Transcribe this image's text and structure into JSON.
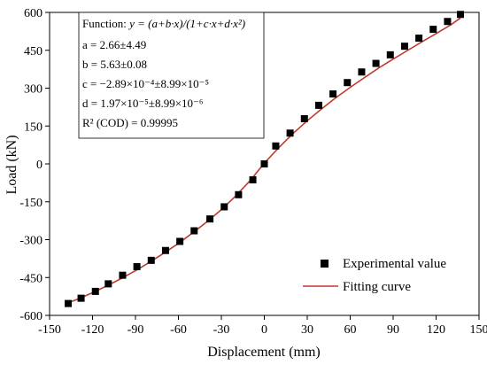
{
  "chart_data": {
    "type": "scatter",
    "xlabel": "Displacement (mm)",
    "ylabel": "Load (kN)",
    "xlim": [
      -150,
      150
    ],
    "ylim": [
      -600,
      600
    ],
    "xticks": [
      -150,
      -120,
      -90,
      -60,
      -30,
      0,
      30,
      60,
      90,
      120,
      150
    ],
    "yticks": [
      -600,
      -450,
      -300,
      -150,
      0,
      150,
      300,
      450,
      600
    ],
    "grid": false,
    "legend_placement": "bottom-right",
    "series": [
      {
        "name": "Experimental value",
        "marker": "square",
        "color": "#000000",
        "x": [
          -137,
          -128,
          -118,
          -109,
          -99,
          -89,
          -79,
          -69,
          -59,
          -49,
          -38,
          -28,
          -18,
          -8,
          0,
          8,
          18,
          28,
          38,
          48,
          58,
          68,
          78,
          88,
          98,
          108,
          118,
          128,
          137
        ],
        "y": [
          -553,
          -532,
          -505,
          -475,
          -441,
          -407,
          -382,
          -343,
          -307,
          -265,
          -218,
          -170,
          -122,
          -63,
          0,
          71,
          122,
          179,
          232,
          277,
          322,
          364,
          398,
          432,
          466,
          498,
          533,
          564,
          592
        ]
      },
      {
        "name": "Fitting curve",
        "type": "line",
        "color": "#c0392b",
        "x": [
          -137,
          -130,
          -120,
          -110,
          -100,
          -90,
          -80,
          -70,
          -60,
          -50,
          -40,
          -30,
          -20,
          -10,
          0,
          10,
          20,
          30,
          40,
          50,
          60,
          70,
          80,
          90,
          100,
          110,
          120,
          130,
          137
        ],
        "y": [
          -550,
          -535,
          -510,
          -483,
          -454,
          -423,
          -389,
          -353,
          -315,
          -273,
          -229,
          -181,
          -127,
          -67,
          3,
          64,
          120,
          171,
          218,
          262,
          303,
          342,
          380,
          415,
          449,
          483,
          516,
          550,
          578
        ]
      }
    ],
    "annotation": {
      "function_prefix": "Function: ",
      "function_formula": "y = (a+b·x)/(1+c·x+d·x²)",
      "lines": [
        "a = 2.66±4.49",
        "b = 5.63±0.08",
        "c = −2.89×10⁻⁴±8.99×10⁻⁵",
        "d = 1.97×10⁻⁵±8.99×10⁻⁶",
        "R² (COD) = 0.99995"
      ]
    }
  }
}
